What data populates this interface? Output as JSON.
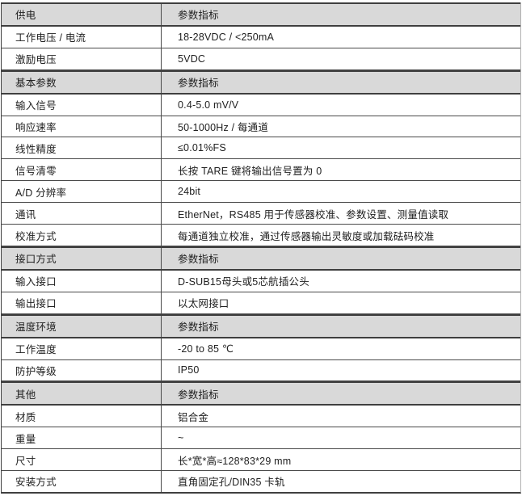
{
  "colors": {
    "section_row_bg": "#d9d9d9",
    "border_dark": "#3f3f3f",
    "row_divider": "#4a4a4a",
    "text": "#212121",
    "page_bg": "#ffffff"
  },
  "table": {
    "rows": [
      {
        "type": "section",
        "label": "供电",
        "value": "参数指标"
      },
      {
        "type": "item",
        "label": "工作电压 / 电流",
        "value": "18-28VDC / <250mA"
      },
      {
        "type": "item",
        "label": "激励电压",
        "value": "5VDC"
      },
      {
        "type": "section",
        "label": "基本参数",
        "value": "参数指标"
      },
      {
        "type": "item",
        "label": "输入信号",
        "value": "0.4-5.0 mV/V"
      },
      {
        "type": "item",
        "label": "响应速率",
        "value": "50-1000Hz / 每通道"
      },
      {
        "type": "item",
        "label": "线性精度",
        "value": "≤0.01%FS"
      },
      {
        "type": "item",
        "label": "信号清零",
        "value": "长按 TARE 键将输出信号置为 0"
      },
      {
        "type": "item",
        "label": "A/D 分辨率",
        "value": "24bit"
      },
      {
        "type": "item",
        "label": "通讯",
        "value": "EtherNet，RS485 用于传感器校准、参数设置、测量值读取"
      },
      {
        "type": "item",
        "label": "校准方式",
        "value": "每通道独立校准，通过传感器输出灵敏度或加载砝码校准"
      },
      {
        "type": "section",
        "label": "接口方式",
        "value": "参数指标"
      },
      {
        "type": "item",
        "label": "输入接口",
        "value": "D-SUB15母头或5芯航插公头"
      },
      {
        "type": "item",
        "label": "输出接口",
        "value": "以太网接口"
      },
      {
        "type": "section",
        "label": "温度环境",
        "value": "参数指标"
      },
      {
        "type": "item",
        "label": "工作温度",
        "value": "-20 to 85 ℃"
      },
      {
        "type": "item",
        "label": "防护等级",
        "value": "IP50"
      },
      {
        "type": "section",
        "label": "其他",
        "value": "参数指标"
      },
      {
        "type": "item",
        "label": "材质",
        "value": "铝合金"
      },
      {
        "type": "item",
        "label": "重量",
        "value": "~"
      },
      {
        "type": "item",
        "label": "尺寸",
        "value": "长*宽*高≈128*83*29 mm"
      },
      {
        "type": "item",
        "label": "安装方式",
        "value": "直角固定孔/DIN35 卡轨"
      }
    ]
  }
}
